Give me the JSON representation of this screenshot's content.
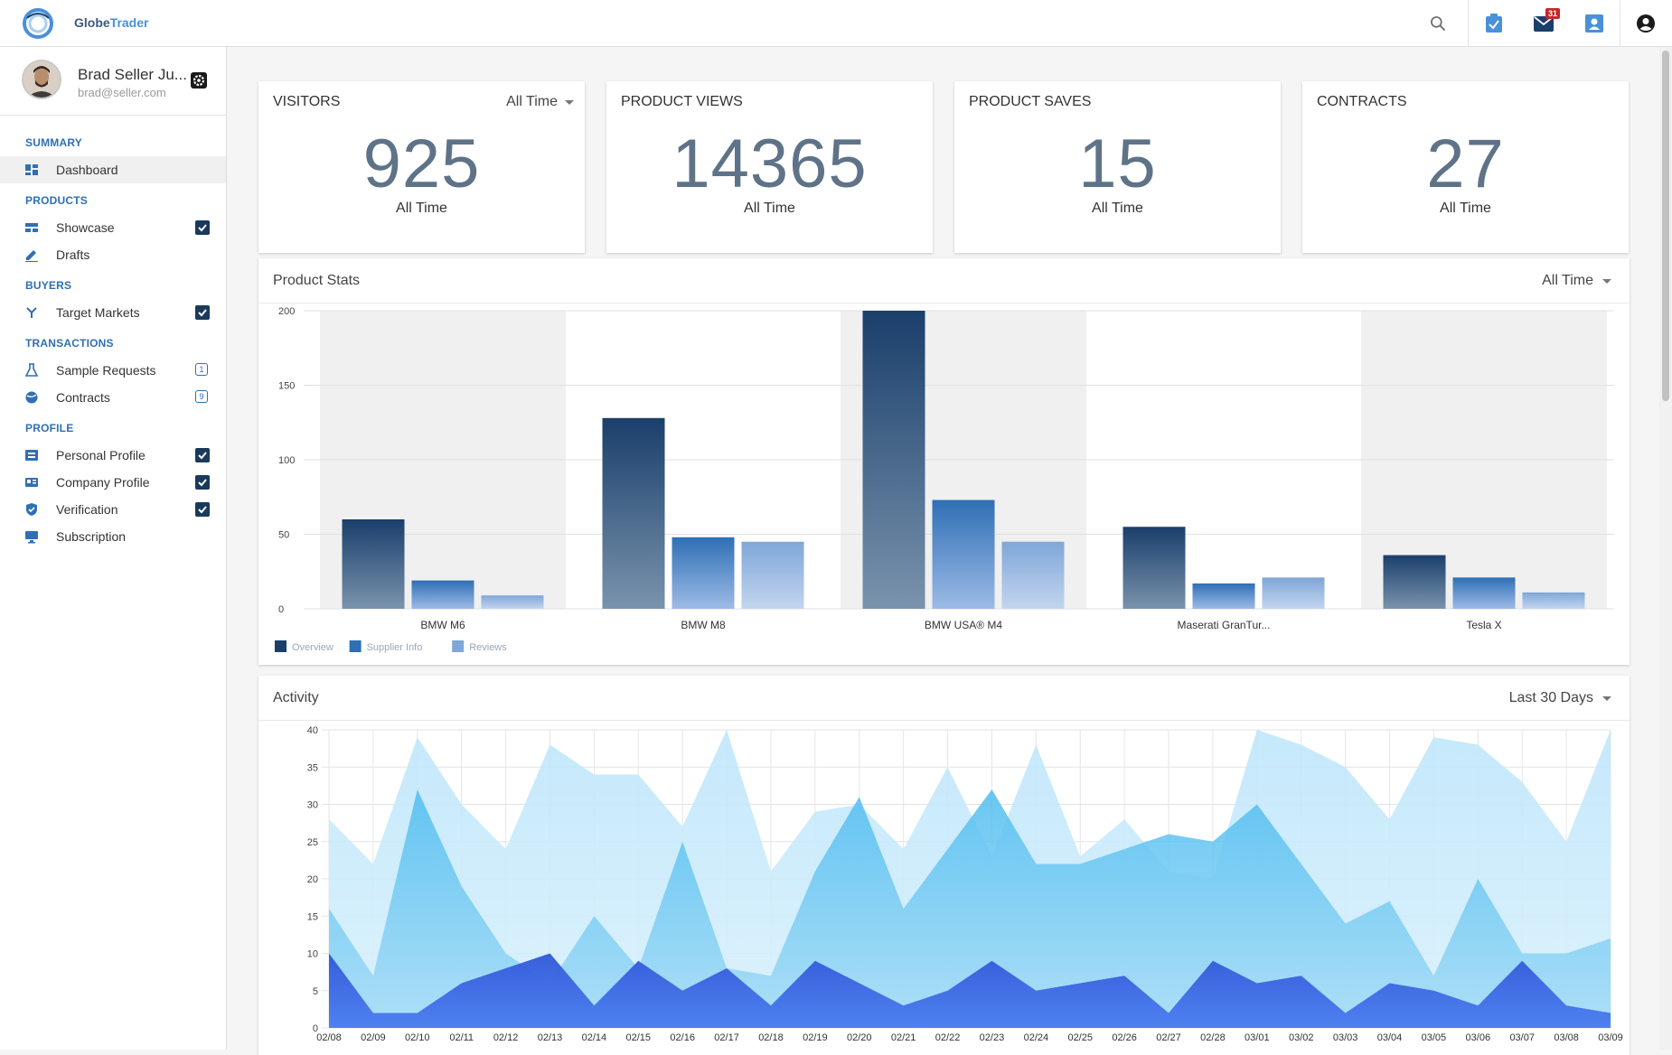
{
  "app": {
    "name_part1": "Globe",
    "name_part2": "Trader"
  },
  "header": {
    "icons": [
      "search-icon",
      "tasks-icon",
      "mail-icon",
      "contact-icon",
      "account-icon"
    ],
    "mail_badge": "31"
  },
  "user": {
    "name": "Brad Seller Ju...",
    "email": "brad@seller.com"
  },
  "sidebar": {
    "sections": {
      "summary": "SUMMARY",
      "products": "PRODUCTS",
      "buyers": "BUYERS",
      "transactions": "TRANSACTIONS",
      "profile": "PROFILE"
    },
    "items": {
      "dashboard": "Dashboard",
      "showcase": "Showcase",
      "drafts": "Drafts",
      "target_markets": "Target Markets",
      "sample_requests": "Sample Requests",
      "contracts": "Contracts",
      "personal_profile": "Personal Profile",
      "company_profile": "Company Profile",
      "verification": "Verification",
      "subscription": "Subscription"
    },
    "counts": {
      "sample_requests": "1",
      "contracts": "9"
    }
  },
  "stats": [
    {
      "title": "VISITORS",
      "value": "925",
      "period": "All Time",
      "dropdown": "All Time"
    },
    {
      "title": "PRODUCT VIEWS",
      "value": "14365",
      "period": "All Time"
    },
    {
      "title": "PRODUCT SAVES",
      "value": "15",
      "period": "All Time"
    },
    {
      "title": "CONTRACTS",
      "value": "27",
      "period": "All Time"
    }
  ],
  "product_stats": {
    "title": "Product Stats",
    "dropdown": "All Time"
  },
  "activity": {
    "title": "Activity",
    "dropdown": "Last 30 Days"
  },
  "colors": {
    "overview": "#1a3f6b",
    "supplier_info": "#2f6fb5",
    "reviews": "#7fa7d8",
    "brand": "#2f6fb5"
  },
  "chart_data": [
    {
      "type": "bar",
      "categories": [
        "BMW M6",
        "BMW M8",
        "BMW USA® M4",
        "Maserati GranTur...",
        "Tesla X"
      ],
      "series": [
        {
          "name": "Overview",
          "values": [
            60,
            128,
            200,
            55,
            36
          ]
        },
        {
          "name": "Supplier Info",
          "values": [
            19,
            48,
            73,
            17,
            21
          ]
        },
        {
          "name": "Reviews",
          "values": [
            9,
            45,
            45,
            21,
            11
          ]
        }
      ],
      "ylim": [
        0,
        200
      ],
      "yticks": [
        0,
        50,
        100,
        150,
        200
      ],
      "legend": "bottom-left",
      "grid": true
    },
    {
      "type": "area",
      "x": [
        "02/08",
        "02/09",
        "02/10",
        "02/11",
        "02/12",
        "02/13",
        "02/14",
        "02/15",
        "02/16",
        "02/17",
        "02/18",
        "02/19",
        "02/20",
        "02/21",
        "02/22",
        "02/23",
        "02/24",
        "02/25",
        "02/26",
        "02/27",
        "02/28",
        "03/01",
        "03/02",
        "03/03",
        "03/04",
        "03/05",
        "03/06",
        "03/07",
        "03/08",
        "03/09"
      ],
      "series": [
        {
          "values": [
            28,
            22,
            39,
            30,
            24,
            38,
            34,
            34,
            27,
            40,
            21,
            29,
            30,
            24,
            35,
            23,
            38,
            23,
            28,
            21,
            20,
            40,
            38,
            35,
            28,
            39,
            38,
            33,
            25,
            40
          ]
        },
        {
          "values": [
            16,
            7,
            32,
            19,
            10,
            6,
            15,
            8,
            25,
            8,
            7,
            21,
            31,
            16,
            24,
            32,
            22,
            22,
            24,
            26,
            25,
            30,
            22,
            14,
            17,
            7,
            20,
            10,
            10,
            12
          ]
        },
        {
          "values": [
            10,
            2,
            2,
            6,
            8,
            10,
            3,
            9,
            5,
            8,
            3,
            9,
            6,
            3,
            5,
            9,
            5,
            6,
            7,
            2,
            9,
            6,
            7,
            2,
            6,
            5,
            3,
            9,
            3,
            2
          ]
        }
      ],
      "ylim": [
        0,
        40
      ],
      "yticks": [
        0,
        5,
        10,
        15,
        20,
        25,
        30,
        35,
        40
      ],
      "grid": true
    }
  ]
}
